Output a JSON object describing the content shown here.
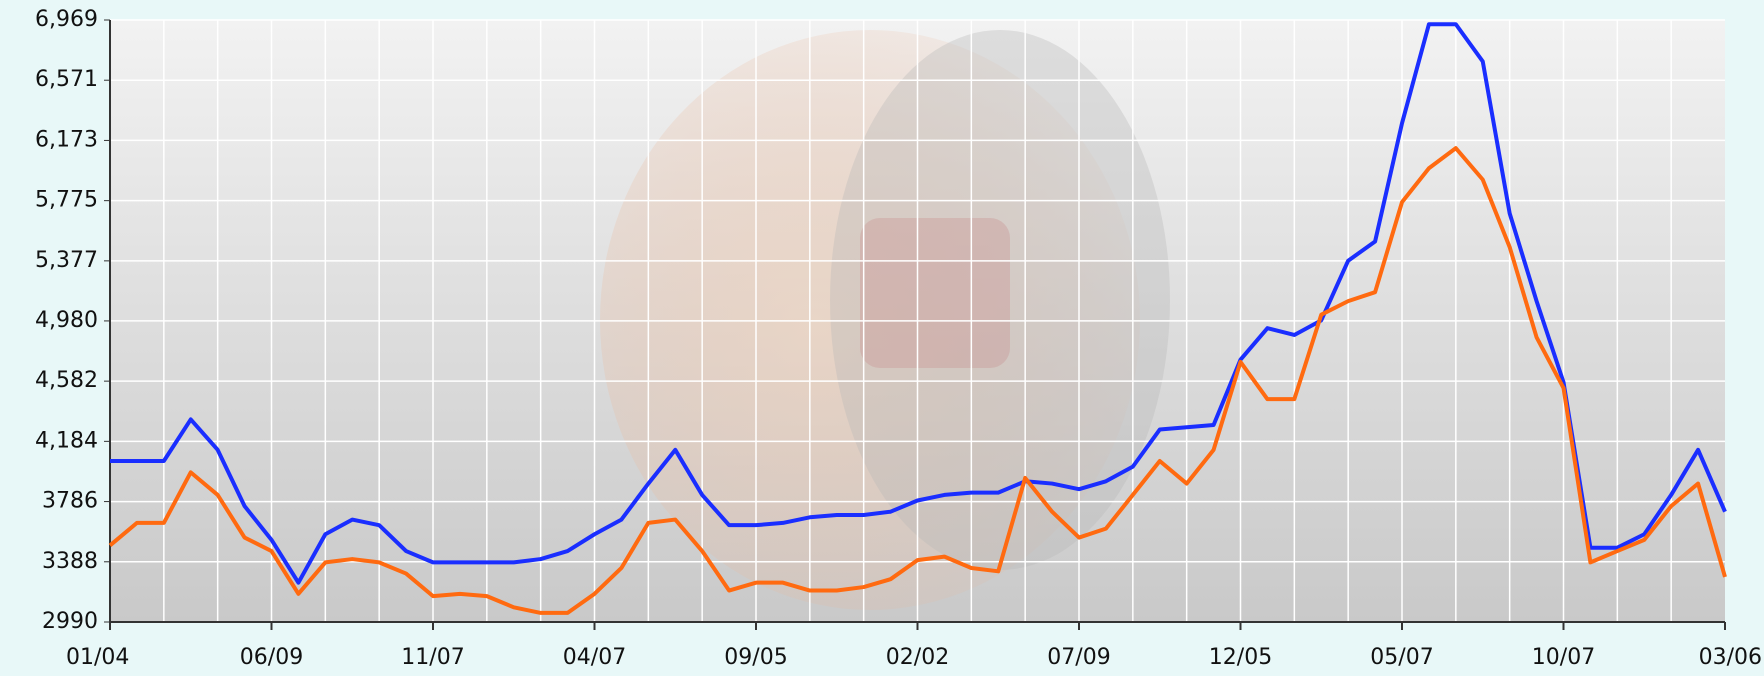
{
  "chart_data": {
    "type": "line",
    "categories": [
      "01/04",
      null,
      null,
      null,
      null,
      null,
      "06/09",
      null,
      null,
      null,
      null,
      null,
      "11/07",
      null,
      null,
      null,
      null,
      null,
      "04/07",
      null,
      null,
      null,
      null,
      null,
      "09/05",
      null,
      null,
      null,
      null,
      null,
      "02/02",
      null,
      null,
      null,
      null,
      null,
      "07/09",
      null,
      null,
      null,
      null,
      null,
      "12/05",
      null,
      null,
      null,
      null,
      null,
      "05/07",
      null,
      null,
      null,
      null,
      null,
      "10/07",
      null,
      null,
      null,
      null,
      null,
      "03/06"
    ],
    "series": [
      {
        "color": "#1a2eff",
        "values": [
          4054,
          4054,
          4054,
          4329,
          4128,
          3756,
          3533,
          3250,
          3570,
          3667,
          3630,
          3459,
          3384,
          3384,
          3384,
          3384,
          3406,
          3459,
          3570,
          3667,
          3905,
          4128,
          3830,
          3630,
          3630,
          3645,
          3682,
          3697,
          3697,
          3719,
          3793,
          3830,
          3845,
          3845,
          3920,
          3905,
          3868,
          3920,
          4017,
          4262,
          4277,
          4292,
          4724,
          4932,
          4887,
          4984,
          5378,
          5505,
          6286,
          6941,
          6941,
          6695,
          5691,
          5111,
          4575,
          3481,
          3481,
          3570,
          3830,
          4128,
          3719
        ]
      },
      {
        "color": "#ff6a10",
        "values": [
          3496,
          3645,
          3645,
          3979,
          3830,
          3548,
          3459,
          3176,
          3384,
          3406,
          3384,
          3310,
          3161,
          3176,
          3161,
          3087,
          3050,
          3050,
          3176,
          3347,
          3645,
          3667,
          3459,
          3198,
          3250,
          3250,
          3198,
          3198,
          3221,
          3273,
          3399,
          3422,
          3347,
          3325,
          3942,
          3719,
          3548,
          3607,
          3830,
          4054,
          3905,
          4128,
          4709,
          4463,
          4463,
          5021,
          5111,
          5170,
          5765,
          5989,
          6122,
          5914,
          5468,
          4872,
          4537,
          3384,
          3459,
          3533,
          3756,
          3905,
          3288
        ]
      }
    ],
    "ylim": [
      2990,
      6969
    ],
    "yticks": [
      2990,
      3388,
      3786,
      {
        "value": 4184,
        "label": "4,184"
      },
      {
        "value": 4582,
        "label": "4,582"
      },
      {
        "value": 4980,
        "label": "4,980"
      },
      {
        "value": 5377,
        "label": "5,377"
      },
      {
        "value": 5775,
        "label": "5,775"
      },
      {
        "value": 6173,
        "label": "6,173"
      },
      {
        "value": 6571,
        "label": "6,571"
      },
      {
        "value": 6969,
        "label": "6,969"
      }
    ],
    "grid": true
  }
}
